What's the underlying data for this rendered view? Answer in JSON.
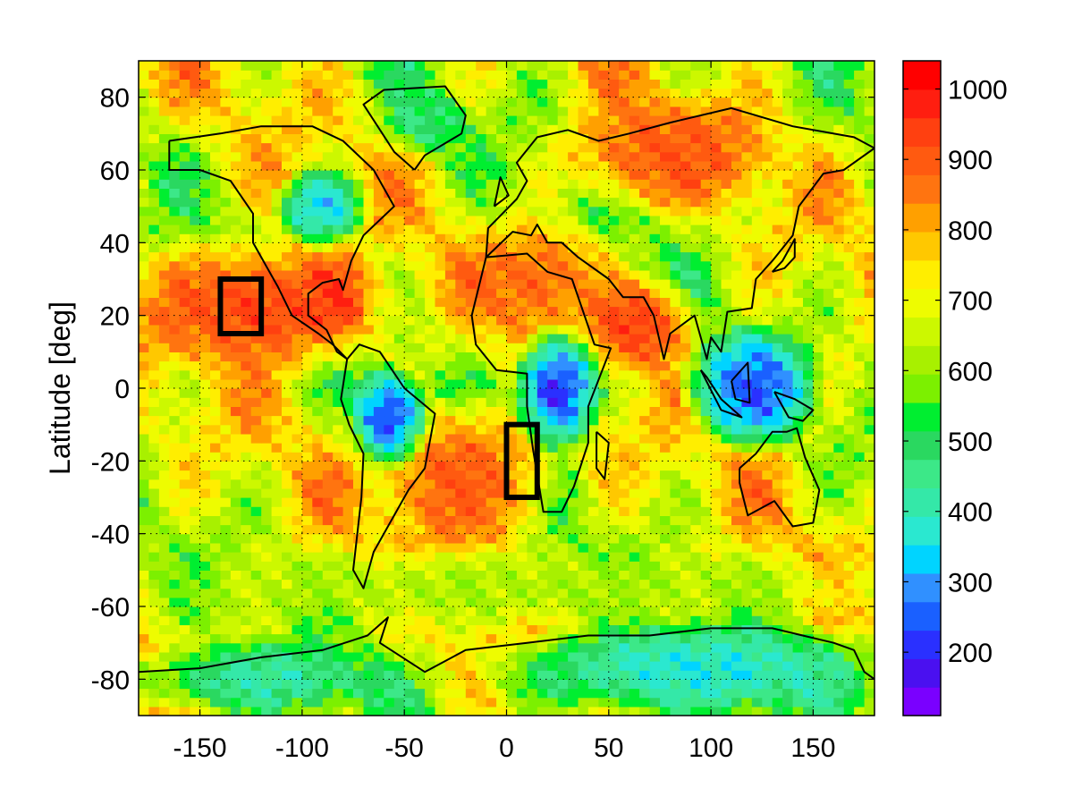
{
  "chart_data": {
    "type": "heatmap",
    "title": "",
    "xlabel": "",
    "ylabel": "Latitude [deg]",
    "xlim": [
      -180,
      180
    ],
    "ylim": [
      -90,
      90
    ],
    "x_ticks": [
      "-150",
      "-100",
      "-50",
      "0",
      "50",
      "100",
      "150"
    ],
    "x_tick_values": [
      -150,
      -100,
      -50,
      0,
      50,
      100,
      150
    ],
    "y_ticks": [
      "80",
      "60",
      "40",
      "20",
      "0",
      "-20",
      "-40",
      "-60",
      "-80"
    ],
    "y_tick_values": [
      80,
      60,
      40,
      20,
      0,
      -20,
      -40,
      -60,
      -80
    ],
    "grid": "dotted",
    "colorbar": {
      "position": "right",
      "range": [
        110,
        1040
      ],
      "tick_labels": [
        "1000",
        "900",
        "800",
        "700",
        "600",
        "500",
        "400",
        "300",
        "200"
      ],
      "tick_values": [
        1000,
        900,
        800,
        700,
        600,
        500,
        400,
        300,
        200
      ],
      "colors": [
        "#7a00ff",
        "#4a10f0",
        "#2a30ff",
        "#1a60ff",
        "#3090ff",
        "#00d4ff",
        "#2ae8d0",
        "#34e8a8",
        "#3ce888",
        "#2ad860",
        "#00ee30",
        "#7cf000",
        "#a8f000",
        "#ccf800",
        "#eefc00",
        "#ffee00",
        "#ffc800",
        "#ffa000",
        "#ff7410",
        "#ff5a10",
        "#ff4010",
        "#ff1e10",
        "#ff0000"
      ]
    },
    "regions": [
      {
        "name": "region-box-pacific",
        "lon": [
          -140,
          -120
        ],
        "lat": [
          15,
          30
        ]
      },
      {
        "name": "region-box-atlantic",
        "lon": [
          0,
          15
        ],
        "lat": [
          -30,
          -10
        ]
      }
    ],
    "field_features": [
      {
        "lon": [
          -180,
          -60
        ],
        "lat": [
          5,
          40
        ],
        "value": 930
      },
      {
        "lon": [
          -100,
          -70
        ],
        "lat": [
          15,
          35
        ],
        "value": 950
      },
      {
        "lon": [
          -60,
          20
        ],
        "lat": [
          -45,
          -5
        ],
        "value": 900
      },
      {
        "lon": [
          -20,
          50
        ],
        "lat": [
          15,
          45
        ],
        "value": 880
      },
      {
        "lon": [
          40,
          90
        ],
        "lat": [
          5,
          30
        ],
        "value": 940
      },
      {
        "lon": [
          30,
          130
        ],
        "lat": [
          50,
          80
        ],
        "value": 900
      },
      {
        "lon": [
          -75,
          -40
        ],
        "lat": [
          -20,
          5
        ],
        "value": 230
      },
      {
        "lon": [
          5,
          45
        ],
        "lat": [
          -15,
          15
        ],
        "value": 200
      },
      {
        "lon": [
          90,
          150
        ],
        "lat": [
          -15,
          15
        ],
        "value": 240
      },
      {
        "lon": [
          -110,
          -70
        ],
        "lat": [
          40,
          60
        ],
        "value": 330
      },
      {
        "lon": [
          -60,
          -20
        ],
        "lat": [
          65,
          82
        ],
        "value": 470
      },
      {
        "lon": [
          0,
          180
        ],
        "lat": [
          -90,
          -65
        ],
        "value": 370
      },
      {
        "lon": [
          -180,
          -60
        ],
        "lat": [
          -90,
          -70
        ],
        "value": 420
      },
      {
        "lon": [
          -180,
          180
        ],
        "lat": [
          -65,
          -45
        ],
        "value": 620
      }
    ]
  }
}
